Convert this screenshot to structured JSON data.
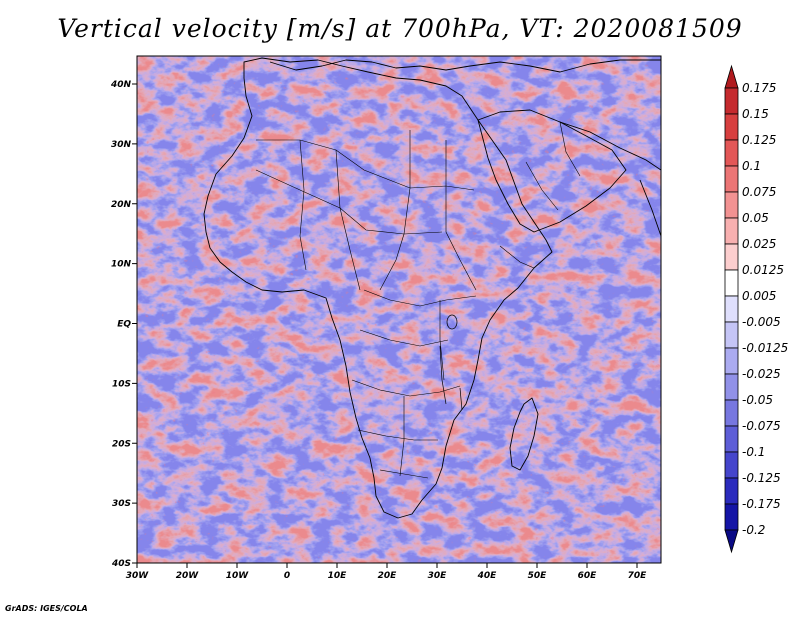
{
  "title": "Vertical velocity [m/s] at 700hPa, VT: 2020081509",
  "footer": "GrADS: IGES/COLA",
  "map": {
    "variable": "Vertical velocity",
    "units": "m/s",
    "level": "700hPa",
    "valid_time": "2020081509",
    "lon_range": [
      -30,
      75
    ],
    "lat_range": [
      -40,
      45
    ],
    "lat_ticks": [
      "40N",
      "30N",
      "20N",
      "10N",
      "EQ",
      "10S",
      "20S",
      "30S",
      "40S"
    ],
    "lon_ticks": [
      "30W",
      "20W",
      "10W",
      "0",
      "10E",
      "20E",
      "30E",
      "40E",
      "50E",
      "60E",
      "70E"
    ]
  },
  "colorbar": {
    "orientation": "vertical",
    "labels": [
      "0.175",
      "0.15",
      "0.125",
      "0.1",
      "0.075",
      "0.05",
      "0.025",
      "0.0125",
      "0.005",
      "-0.005",
      "-0.0125",
      "-0.025",
      "-0.05",
      "-0.075",
      "-0.1",
      "-0.125",
      "-0.175",
      "-0.2"
    ],
    "colors": [
      "#b01a1e",
      "#c52a2e",
      "#d73f3f",
      "#e35757",
      "#ec7575",
      "#f29292",
      "#f8b0b0",
      "#fccece",
      "#ffffff",
      "#dfdffc",
      "#c5c5f6",
      "#ababf0",
      "#9191e8",
      "#7777e0",
      "#5e5ed7",
      "#4545cc",
      "#2b2bbd",
      "#1515a6",
      "#0a0a85"
    ]
  },
  "colors": {
    "ascent": "#d73f3f",
    "descent": "#5e5ed7",
    "boundaries": "#000000"
  }
}
